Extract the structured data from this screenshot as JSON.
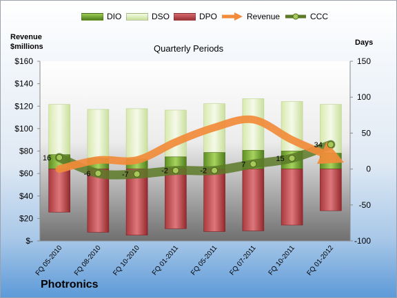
{
  "legend": {
    "dio": "DIO",
    "dso": "DSO",
    "dpo": "DPO",
    "revenue": "Revenue",
    "ccc": "CCC"
  },
  "colors": {
    "dio": "#6a9a2a",
    "dso": "#dcedb5",
    "dpo": "#b94a4e",
    "revenue": "#f28c3a",
    "ccc": "#5c7a28"
  },
  "labels": {
    "left_axis_title_line1": "Revenue",
    "left_axis_title_line2": "$millions",
    "right_axis_title": "Days",
    "plot_title": "Quarterly Periods",
    "company": "Photronics"
  },
  "chart_data": {
    "type": "bar",
    "title": "Quarterly Periods",
    "categories": [
      "FQ 05-2010",
      "FQ 08-2010",
      "FQ 10-2010",
      "FQ 01-2011",
      "FQ 05-2011",
      "FQ 07-2011",
      "FQ 10-2011",
      "FQ 01-2012"
    ],
    "left_axis": {
      "ylim": [
        0,
        160
      ],
      "ticks": [
        0,
        20,
        40,
        60,
        80,
        100,
        120,
        140,
        160
      ],
      "tick_labels": [
        "$-",
        "$20",
        "$40",
        "$60",
        "$80",
        "$100",
        "$120",
        "$140",
        "$160"
      ]
    },
    "right_axis": {
      "ylim": [
        -100,
        150
      ],
      "ticks": [
        -100,
        -50,
        0,
        50,
        100,
        150
      ],
      "tick_labels": [
        "-100",
        "-50",
        "0",
        "50",
        "100",
        "150"
      ]
    },
    "series": [
      {
        "name": "DIO",
        "axis": "right",
        "values": [
          20,
          15,
          14,
          17,
          23,
          26,
          25,
          22
        ]
      },
      {
        "name": "DSO",
        "axis": "right",
        "values": [
          70,
          68,
          70,
          65,
          68,
          72,
          69,
          68
        ]
      },
      {
        "name": "DPO",
        "axis": "right",
        "values": [
          -60,
          -88,
          -92,
          -83,
          -87,
          -86,
          -78,
          -58
        ]
      },
      {
        "name": "Revenue",
        "axis": "left",
        "values": [
          64,
          72,
          72,
          88,
          101,
          108,
          90,
          75
        ]
      },
      {
        "name": "CCC",
        "axis": "right",
        "values": [
          16,
          -6,
          -7,
          -2,
          -2,
          7,
          15,
          34
        ]
      }
    ],
    "ccc_labels": [
      "16",
      "-6",
      "-7",
      "-2",
      "-2",
      "7",
      "15",
      "34"
    ],
    "legend_position": "top",
    "grid": false
  }
}
